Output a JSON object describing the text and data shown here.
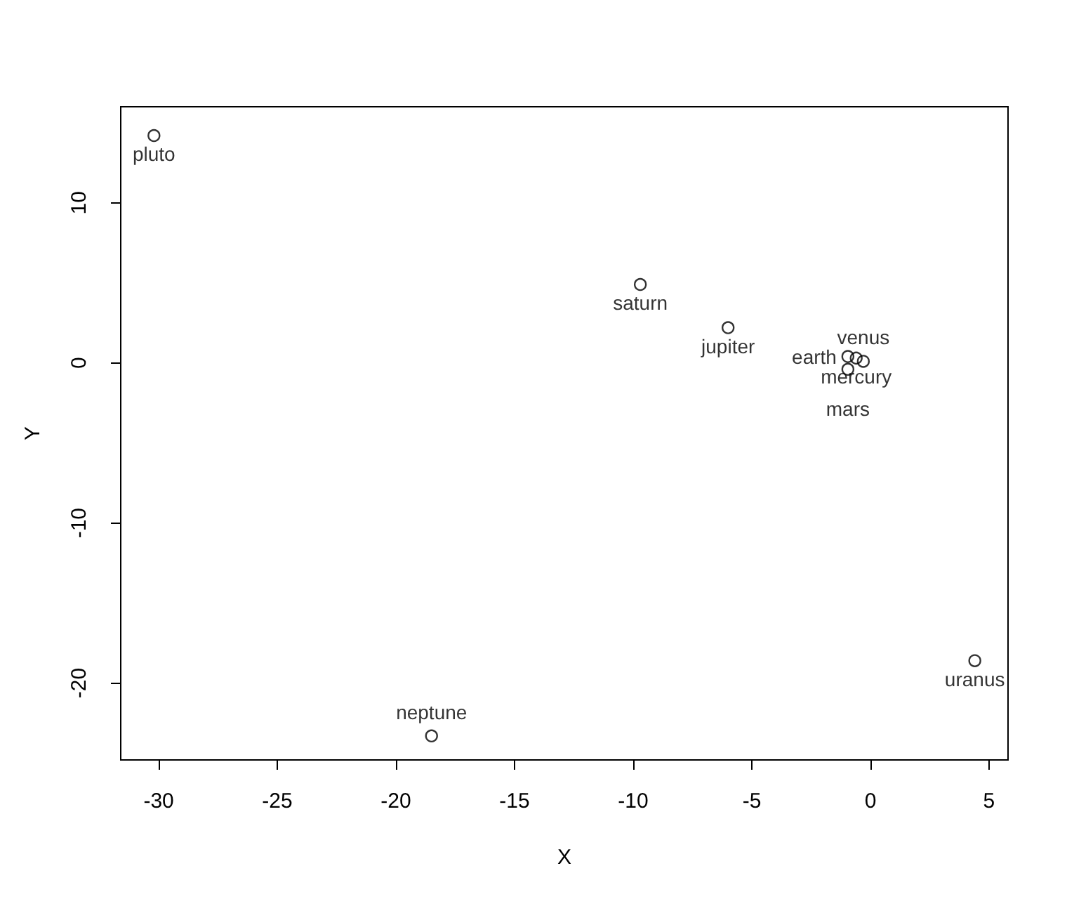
{
  "chart_data": {
    "type": "scatter",
    "xlabel": "X",
    "ylabel": "Y",
    "x": [
      -30.2,
      -9.7,
      -6.0,
      -18.5,
      4.4,
      -0.6,
      -0.3,
      -0.95,
      -0.95
    ],
    "series": [
      {
        "color": "#000000",
        "values": [
          14.2,
          4.9,
          2.2,
          -23.3,
          -18.6,
          0.3,
          0.1,
          0.4,
          -0.4
        ]
      }
    ],
    "marker": "circle",
    "grid": false,
    "xlim": [
      -31.6,
      5.8
    ],
    "xticks": [
      -30,
      -25,
      -20,
      -15,
      -10,
      -5,
      0,
      5
    ],
    "ylim": [
      -24.8,
      16
    ],
    "yticks": [
      -20,
      -10,
      0,
      10
    ],
    "annotations": [
      {
        "text": "pluto",
        "x": -30.2,
        "y": 14.2
      },
      {
        "text": "saturn",
        "x": -9.7,
        "y": 4.9
      },
      {
        "text": "jupiter",
        "x": -6.0,
        "y": 2.2
      },
      {
        "text": "neptune",
        "x": -18.5,
        "y": -23.3
      },
      {
        "text": "uranus",
        "x": 4.4,
        "y": -18.6
      },
      {
        "text": "mercury",
        "x": -0.6,
        "y": 0.3
      },
      {
        "text": "venus",
        "x": -0.3,
        "y": 0.1
      },
      {
        "text": "earth",
        "x": -0.95,
        "y": 0.4
      },
      {
        "text": "mars",
        "x": -0.95,
        "y": -0.4
      }
    ]
  }
}
